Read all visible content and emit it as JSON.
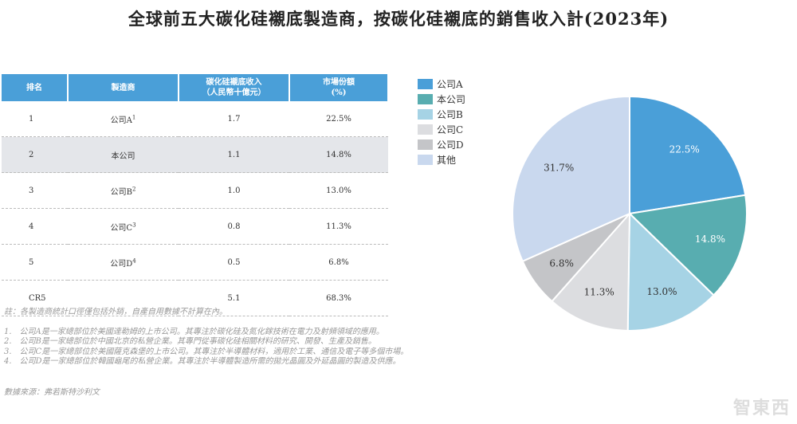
{
  "title": "全球前五大碳化硅襯底製造商，按碳化硅襯底的銷售收入計(2023年)",
  "table": {
    "headers": [
      "排名",
      "製造商",
      "碳化硅襯底收入\n（人民幣十億元）",
      "市場份額\n(%)"
    ],
    "rows": [
      {
        "rank": "1",
        "maker": "公司A",
        "sup": "1",
        "revenue": "1.7",
        "share": "22.5%"
      },
      {
        "rank": "2",
        "maker": "本公司",
        "sup": "",
        "revenue": "1.1",
        "share": "14.8%"
      },
      {
        "rank": "3",
        "maker": "公司B",
        "sup": "2",
        "revenue": "1.0",
        "share": "13.0%"
      },
      {
        "rank": "4",
        "maker": "公司C",
        "sup": "3",
        "revenue": "0.8",
        "share": "11.3%"
      },
      {
        "rank": "5",
        "maker": "公司D",
        "sup": "4",
        "revenue": "0.5",
        "share": "6.8%"
      },
      {
        "rank": "CR5",
        "maker": "",
        "sup": "",
        "revenue": "5.1",
        "share": "68.3%"
      }
    ]
  },
  "notes": {
    "note": "註：各製造商統計口徑僅包括外銷，自產自用數據不計算在內。",
    "footnotes": [
      "1.　公司A是一家總部位於美國達勒姆的上市公司。其專注於碳化硅及氮化鎵技術在電力及射頻領域的應用。",
      "2.　公司B是一家總部位於中國北京的私營企業。其專門從事碳化硅相關材料的研究、開發、生產及銷售。",
      "3.　公司C是一家總部位於美國薩克森堡的上市公司。其專注於半導體材料，適用於工業、通信及電子等多個市場。",
      "4.　公司D是一家總部位於韓國龜尾的私營企業。其專注於半導體製造所需的拋光晶圓及外延晶圓的製造及供應。"
    ],
    "source": "數據來源：弗若斯特沙利文"
  },
  "watermark": "智東西",
  "chart_data": {
    "type": "pie",
    "start": "12 o'clock, clockwise",
    "legend_position": "top-left",
    "labels": [
      "公司A",
      "本公司",
      "公司B",
      "公司C",
      "公司D",
      "其他"
    ],
    "values": [
      22.5,
      14.8,
      13.0,
      11.3,
      6.8,
      31.7
    ],
    "data_labels": [
      "22.5%",
      "14.8%",
      "13.0%",
      "11.3%",
      "6.8%",
      "31.7%"
    ],
    "colors": [
      "#4a9fd8",
      "#58adb0",
      "#a6d3e5",
      "#dcdde0",
      "#c4c5c8",
      "#c9d8ee"
    ]
  }
}
